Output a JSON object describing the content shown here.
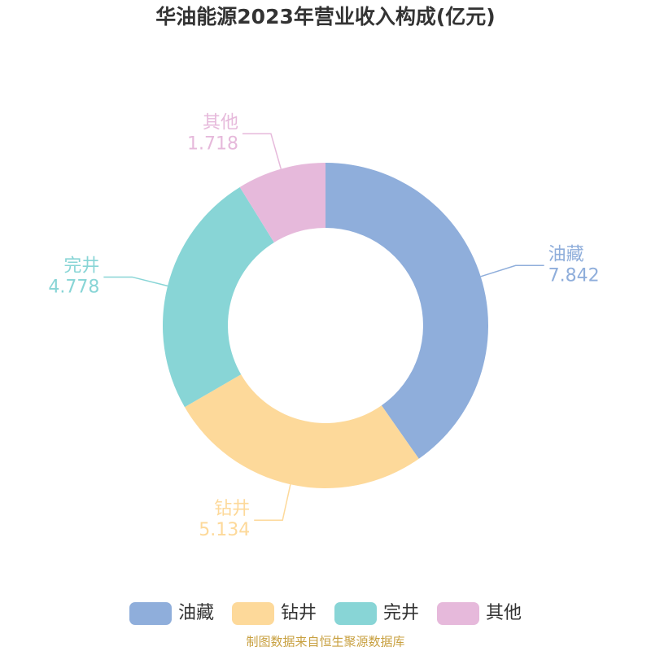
{
  "chart_data": {
    "type": "donut",
    "title": "华油能源2023年营业收入构成(亿元)",
    "categories": [
      "油藏",
      "钻井",
      "完井",
      "其他"
    ],
    "values": [
      7.842,
      5.134,
      4.778,
      1.718
    ],
    "colors": [
      "#8faedb",
      "#fdd99a",
      "#88d5d6",
      "#e6b9db"
    ],
    "legend": "bottom",
    "source": "制图数据来自恒生聚源数据库"
  }
}
